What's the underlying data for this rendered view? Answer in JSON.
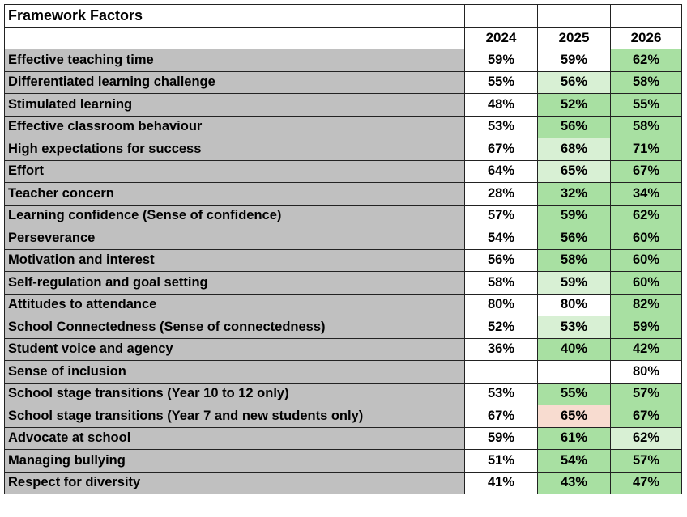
{
  "title": "Framework Factors",
  "years": [
    "2024",
    "2025",
    "2026"
  ],
  "colors": {
    "label_bg": "#c0c0c0",
    "green_strong": "#a8e0a2",
    "green_light": "#d8f0d4",
    "red_light": "#f8dcd0",
    "plain": "#ffffff"
  },
  "chart_data": {
    "type": "table",
    "title": "Framework Factors",
    "columns": [
      "2024",
      "2025",
      "2026"
    ],
    "rows": [
      {
        "label": "Effective teaching time",
        "values": [
          "59%",
          "59%",
          "62%"
        ],
        "fills": [
          "plain",
          "plain",
          "green_strong"
        ]
      },
      {
        "label": "Differentiated learning challenge",
        "values": [
          "55%",
          "56%",
          "58%"
        ],
        "fills": [
          "plain",
          "green_light",
          "green_strong"
        ]
      },
      {
        "label": "Stimulated learning",
        "values": [
          "48%",
          "52%",
          "55%"
        ],
        "fills": [
          "plain",
          "green_strong",
          "green_strong"
        ]
      },
      {
        "label": "Effective classroom behaviour",
        "values": [
          "53%",
          "56%",
          "58%"
        ],
        "fills": [
          "plain",
          "green_strong",
          "green_strong"
        ]
      },
      {
        "label": "High expectations for success",
        "values": [
          "67%",
          "68%",
          "71%"
        ],
        "fills": [
          "plain",
          "green_light",
          "green_strong"
        ]
      },
      {
        "label": "Effort",
        "values": [
          "64%",
          "65%",
          "67%"
        ],
        "fills": [
          "plain",
          "green_light",
          "green_strong"
        ]
      },
      {
        "label": "Teacher concern",
        "values": [
          "28%",
          "32%",
          "34%"
        ],
        "fills": [
          "plain",
          "green_strong",
          "green_strong"
        ]
      },
      {
        "label": "Learning confidence (Sense of confidence)",
        "values": [
          "57%",
          "59%",
          "62%"
        ],
        "fills": [
          "plain",
          "green_strong",
          "green_strong"
        ]
      },
      {
        "label": "Perseverance",
        "values": [
          "54%",
          "56%",
          "60%"
        ],
        "fills": [
          "plain",
          "green_strong",
          "green_strong"
        ]
      },
      {
        "label": "Motivation and interest",
        "values": [
          "56%",
          "58%",
          "60%"
        ],
        "fills": [
          "plain",
          "green_strong",
          "green_strong"
        ]
      },
      {
        "label": "Self-regulation and goal setting",
        "values": [
          "58%",
          "59%",
          "60%"
        ],
        "fills": [
          "plain",
          "green_light",
          "green_strong"
        ]
      },
      {
        "label": "Attitudes to attendance",
        "values": [
          "80%",
          "80%",
          "82%"
        ],
        "fills": [
          "plain",
          "plain",
          "green_strong"
        ]
      },
      {
        "label": "School Connectedness (Sense of connectedness)",
        "values": [
          "52%",
          "53%",
          "59%"
        ],
        "fills": [
          "plain",
          "green_light",
          "green_strong"
        ]
      },
      {
        "label": "Student voice and agency",
        "values": [
          "36%",
          "40%",
          "42%"
        ],
        "fills": [
          "plain",
          "green_strong",
          "green_strong"
        ]
      },
      {
        "label": "Sense of inclusion",
        "values": [
          "",
          "",
          "80%"
        ],
        "fills": [
          "plain",
          "plain",
          "plain"
        ]
      },
      {
        "label": "School stage transitions (Year 10 to 12 only)",
        "values": [
          "53%",
          "55%",
          "57%"
        ],
        "fills": [
          "plain",
          "green_strong",
          "green_strong"
        ]
      },
      {
        "label": "School stage transitions (Year 7 and new students only)",
        "values": [
          "67%",
          "65%",
          "67%"
        ],
        "fills": [
          "plain",
          "red_light",
          "green_strong"
        ]
      },
      {
        "label": "Advocate at school",
        "values": [
          "59%",
          "61%",
          "62%"
        ],
        "fills": [
          "plain",
          "green_strong",
          "green_light"
        ]
      },
      {
        "label": "Managing bullying",
        "values": [
          "51%",
          "54%",
          "57%"
        ],
        "fills": [
          "plain",
          "green_strong",
          "green_strong"
        ]
      },
      {
        "label": "Respect for diversity",
        "values": [
          "41%",
          "43%",
          "47%"
        ],
        "fills": [
          "plain",
          "green_strong",
          "green_strong"
        ]
      }
    ]
  }
}
